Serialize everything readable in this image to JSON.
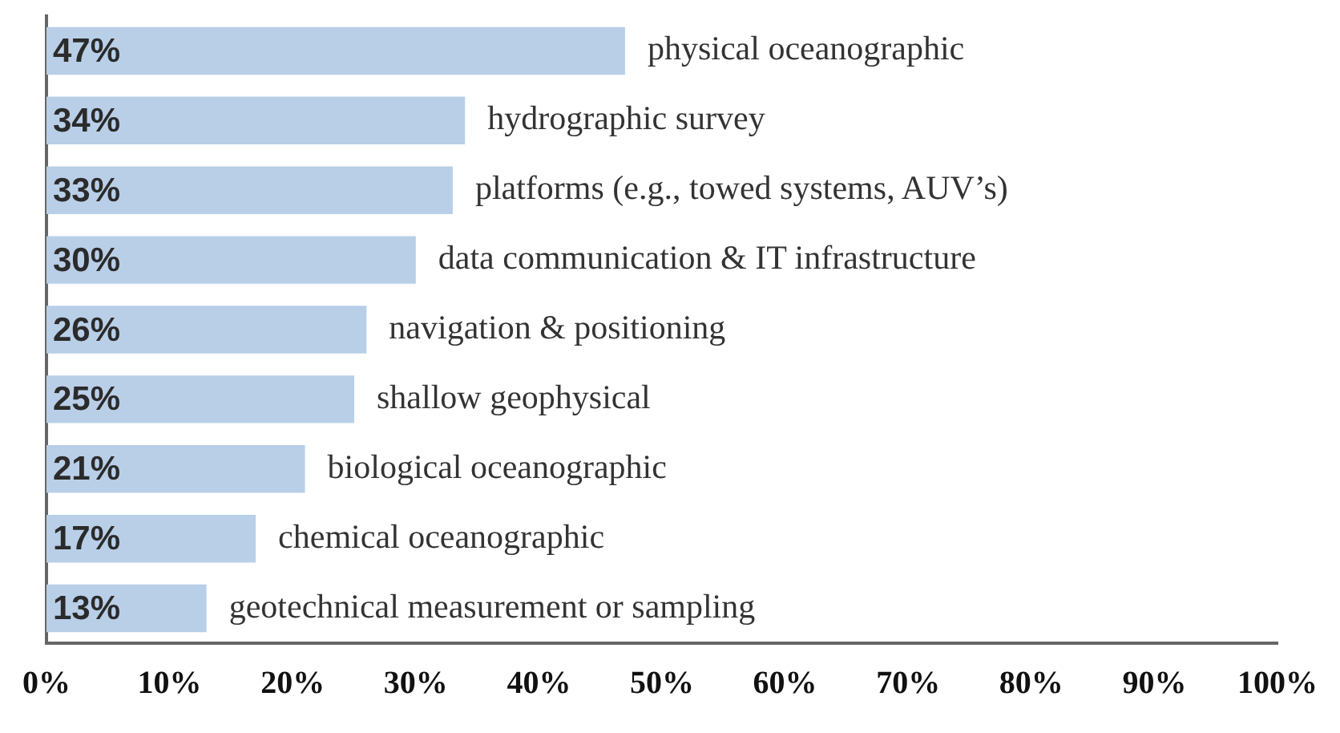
{
  "chart_data": {
    "type": "bar",
    "orientation": "horizontal",
    "categories": [
      "physical oceanographic",
      "hydrographic survey",
      "platforms (e.g., towed systems, AUV’s)",
      "data communication & IT infrastructure",
      "navigation & positioning",
      "shallow geophysical",
      "biological oceanographic",
      "chemical oceanographic",
      "geotechnical measurement or sampling"
    ],
    "values": [
      47,
      34,
      33,
      30,
      26,
      25,
      21,
      17,
      13
    ],
    "value_labels": [
      "47%",
      "34%",
      "33%",
      "30%",
      "26%",
      "25%",
      "21%",
      "17%",
      "13%"
    ],
    "color": "#b9cfe8",
    "xlim": [
      0,
      100
    ],
    "xticks": [
      {
        "value": 0,
        "label": "0%"
      },
      {
        "value": 10,
        "label": "10%"
      },
      {
        "value": 20,
        "label": "20%"
      },
      {
        "value": 30,
        "label": "30%"
      },
      {
        "value": 40,
        "label": "40%"
      },
      {
        "value": 50,
        "label": "50%"
      },
      {
        "value": 60,
        "label": "60%"
      },
      {
        "value": 70,
        "label": "70%"
      },
      {
        "value": 80,
        "label": "80%"
      },
      {
        "value": 90,
        "label": "90%"
      },
      {
        "value": 100,
        "label": "100%"
      }
    ],
    "tick_labels": "x",
    "grid": false,
    "legend": false
  }
}
